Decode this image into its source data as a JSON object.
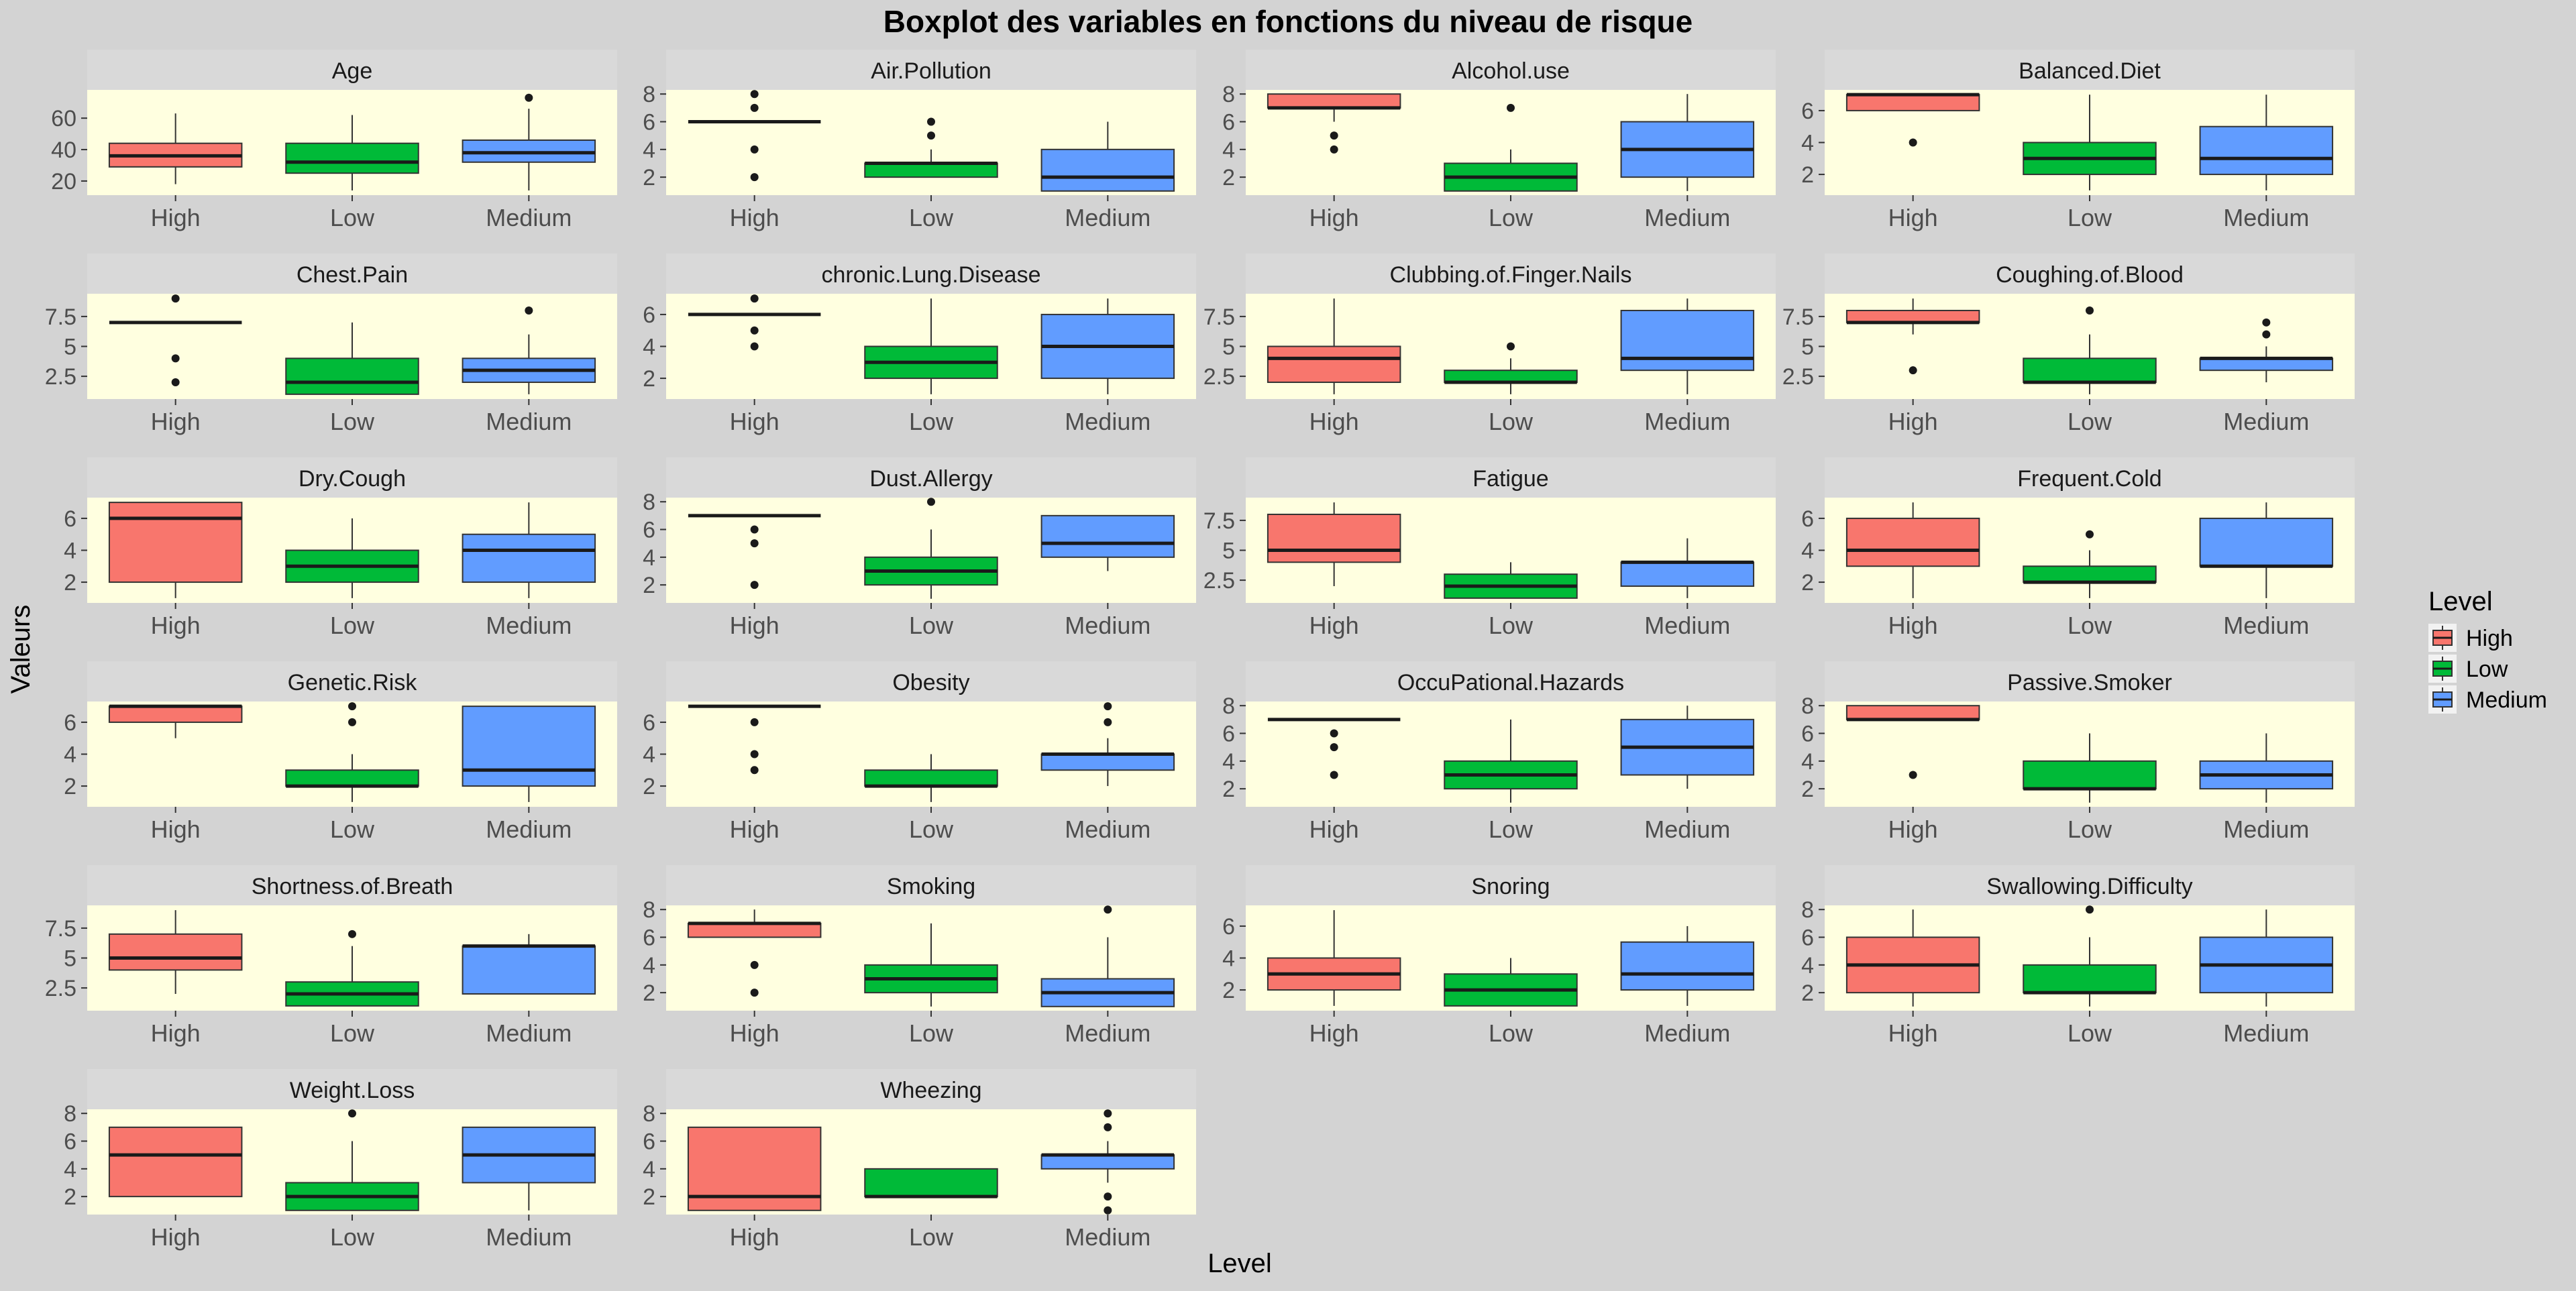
{
  "chart_data": {
    "type": "boxplot",
    "title": "Boxplot des variables en fonctions  du niveau de risque",
    "xlabel": "Level",
    "ylabel": "Valeurs",
    "categories": [
      "High",
      "Low",
      "Medium"
    ],
    "legend": {
      "title": "Level",
      "position": "right",
      "entries": [
        {
          "label": "High",
          "color": "#f8766d"
        },
        {
          "label": "Low",
          "color": "#00ba38"
        },
        {
          "label": "Medium",
          "color": "#619cff"
        }
      ]
    },
    "panel_background": "#ffffe0",
    "strip_background": "#d9d9d9",
    "page_background": "#d3d3d3",
    "panels": [
      {
        "title": "Age",
        "ylim": [
          11,
          78
        ],
        "yticks": [
          20,
          40,
          60
        ],
        "boxes": [
          {
            "level": "High",
            "min": 18,
            "q1": 29,
            "median": 36,
            "q3": 44,
            "max": 63,
            "outliers": []
          },
          {
            "level": "Low",
            "min": 14,
            "q1": 25,
            "median": 32,
            "q3": 44,
            "max": 62,
            "outliers": []
          },
          {
            "level": "Medium",
            "min": 14,
            "q1": 32,
            "median": 38,
            "q3": 46,
            "max": 66,
            "outliers": [
              73
            ]
          }
        ]
      },
      {
        "title": "Air.Pollution",
        "ylim": [
          0.7,
          8.3
        ],
        "yticks": [
          2,
          4,
          6,
          8
        ],
        "boxes": [
          {
            "level": "High",
            "min": 6,
            "q1": 6,
            "median": 6,
            "q3": 6,
            "max": 6,
            "outliers": [
              2,
              4,
              7,
              8
            ]
          },
          {
            "level": "Low",
            "min": 2,
            "q1": 2,
            "median": 3,
            "q3": 3,
            "max": 4,
            "outliers": [
              5,
              6
            ]
          },
          {
            "level": "Medium",
            "min": 1,
            "q1": 1,
            "median": 2,
            "q3": 4,
            "max": 6,
            "outliers": []
          }
        ]
      },
      {
        "title": "Alcohol.use",
        "ylim": [
          0.7,
          8.3
        ],
        "yticks": [
          2,
          4,
          6,
          8
        ],
        "boxes": [
          {
            "level": "High",
            "min": 6,
            "q1": 7,
            "median": 7,
            "q3": 8,
            "max": 8,
            "outliers": [
              4,
              5
            ]
          },
          {
            "level": "Low",
            "min": 1,
            "q1": 1,
            "median": 2,
            "q3": 3,
            "max": 4,
            "outliers": [
              7
            ]
          },
          {
            "level": "Medium",
            "min": 1,
            "q1": 2,
            "median": 4,
            "q3": 6,
            "max": 8,
            "outliers": []
          }
        ]
      },
      {
        "title": "Balanced.Diet",
        "ylim": [
          0.7,
          7.3
        ],
        "yticks": [
          2,
          4,
          6
        ],
        "boxes": [
          {
            "level": "High",
            "min": 6,
            "q1": 6,
            "median": 7,
            "q3": 7,
            "max": 7,
            "outliers": [
              4
            ]
          },
          {
            "level": "Low",
            "min": 1,
            "q1": 2,
            "median": 3,
            "q3": 4,
            "max": 7,
            "outliers": []
          },
          {
            "level": "Medium",
            "min": 1,
            "q1": 2,
            "median": 3,
            "q3": 5,
            "max": 7,
            "outliers": []
          }
        ]
      },
      {
        "title": "Chest.Pain",
        "ylim": [
          0.6,
          9.4
        ],
        "yticks": [
          2.5,
          5.0,
          7.5
        ],
        "boxes": [
          {
            "level": "High",
            "min": 7,
            "q1": 7,
            "median": 7,
            "q3": 7,
            "max": 7,
            "outliers": [
              2,
              4,
              9
            ]
          },
          {
            "level": "Low",
            "min": 1,
            "q1": 1,
            "median": 2,
            "q3": 4,
            "max": 7,
            "outliers": []
          },
          {
            "level": "Medium",
            "min": 1,
            "q1": 2,
            "median": 3,
            "q3": 4,
            "max": 6,
            "outliers": [
              8
            ]
          }
        ]
      },
      {
        "title": "chronic.Lung.Disease",
        "ylim": [
          0.7,
          7.3
        ],
        "yticks": [
          2,
          4,
          6
        ],
        "boxes": [
          {
            "level": "High",
            "min": 6,
            "q1": 6,
            "median": 6,
            "q3": 6,
            "max": 6,
            "outliers": [
              4,
              5,
              7
            ]
          },
          {
            "level": "Low",
            "min": 1,
            "q1": 2,
            "median": 3,
            "q3": 4,
            "max": 7,
            "outliers": []
          },
          {
            "level": "Medium",
            "min": 1,
            "q1": 2,
            "median": 4,
            "q3": 6,
            "max": 7,
            "outliers": []
          }
        ]
      },
      {
        "title": "Clubbing.of.Finger.Nails",
        "ylim": [
          0.6,
          9.4
        ],
        "yticks": [
          2.5,
          5.0,
          7.5
        ],
        "boxes": [
          {
            "level": "High",
            "min": 1,
            "q1": 2,
            "median": 4,
            "q3": 5,
            "max": 9,
            "outliers": []
          },
          {
            "level": "Low",
            "min": 1,
            "q1": 2,
            "median": 2,
            "q3": 3,
            "max": 4,
            "outliers": [
              5
            ]
          },
          {
            "level": "Medium",
            "min": 1,
            "q1": 3,
            "median": 4,
            "q3": 8,
            "max": 9,
            "outliers": []
          }
        ]
      },
      {
        "title": "Coughing.of.Blood",
        "ylim": [
          0.6,
          9.4
        ],
        "yticks": [
          2.5,
          5.0,
          7.5
        ],
        "boxes": [
          {
            "level": "High",
            "min": 6,
            "q1": 7,
            "median": 7,
            "q3": 8,
            "max": 9,
            "outliers": [
              3
            ]
          },
          {
            "level": "Low",
            "min": 1,
            "q1": 2,
            "median": 2,
            "q3": 4,
            "max": 6,
            "outliers": [
              8
            ]
          },
          {
            "level": "Medium",
            "min": 2,
            "q1": 3,
            "median": 4,
            "q3": 4,
            "max": 5,
            "outliers": [
              6,
              7
            ]
          }
        ]
      },
      {
        "title": "Dry.Cough",
        "ylim": [
          0.7,
          7.3
        ],
        "yticks": [
          2,
          4,
          6
        ],
        "boxes": [
          {
            "level": "High",
            "min": 1,
            "q1": 2,
            "median": 6,
            "q3": 7,
            "max": 7,
            "outliers": []
          },
          {
            "level": "Low",
            "min": 1,
            "q1": 2,
            "median": 3,
            "q3": 4,
            "max": 6,
            "outliers": []
          },
          {
            "level": "Medium",
            "min": 1,
            "q1": 2,
            "median": 4,
            "q3": 5,
            "max": 7,
            "outliers": []
          }
        ]
      },
      {
        "title": "Dust.Allergy",
        "ylim": [
          0.7,
          8.3
        ],
        "yticks": [
          2,
          4,
          6,
          8
        ],
        "boxes": [
          {
            "level": "High",
            "min": 7,
            "q1": 7,
            "median": 7,
            "q3": 7,
            "max": 7,
            "outliers": [
              2,
              5,
              6
            ]
          },
          {
            "level": "Low",
            "min": 1,
            "q1": 2,
            "median": 3,
            "q3": 4,
            "max": 6,
            "outliers": [
              8
            ]
          },
          {
            "level": "Medium",
            "min": 3,
            "q1": 4,
            "median": 5,
            "q3": 7,
            "max": 7,
            "outliers": []
          }
        ]
      },
      {
        "title": "Fatigue",
        "ylim": [
          0.6,
          9.4
        ],
        "yticks": [
          2.5,
          5.0,
          7.5
        ],
        "boxes": [
          {
            "level": "High",
            "min": 2,
            "q1": 4,
            "median": 5,
            "q3": 8,
            "max": 9,
            "outliers": []
          },
          {
            "level": "Low",
            "min": 1,
            "q1": 1,
            "median": 2,
            "q3": 3,
            "max": 4,
            "outliers": []
          },
          {
            "level": "Medium",
            "min": 1,
            "q1": 2,
            "median": 4,
            "q3": 4,
            "max": 6,
            "outliers": []
          }
        ]
      },
      {
        "title": "Frequent.Cold",
        "ylim": [
          0.7,
          7.3
        ],
        "yticks": [
          2,
          4,
          6
        ],
        "boxes": [
          {
            "level": "High",
            "min": 1,
            "q1": 3,
            "median": 4,
            "q3": 6,
            "max": 7,
            "outliers": []
          },
          {
            "level": "Low",
            "min": 1,
            "q1": 2,
            "median": 2,
            "q3": 3,
            "max": 4,
            "outliers": [
              5
            ]
          },
          {
            "level": "Medium",
            "min": 1,
            "q1": 3,
            "median": 3,
            "q3": 6,
            "max": 7,
            "outliers": []
          }
        ]
      },
      {
        "title": "Genetic.Risk",
        "ylim": [
          0.7,
          7.3
        ],
        "yticks": [
          2,
          4,
          6
        ],
        "boxes": [
          {
            "level": "High",
            "min": 5,
            "q1": 6,
            "median": 7,
            "q3": 7,
            "max": 7,
            "outliers": []
          },
          {
            "level": "Low",
            "min": 1,
            "q1": 2,
            "median": 2,
            "q3": 3,
            "max": 4,
            "outliers": [
              6,
              7
            ]
          },
          {
            "level": "Medium",
            "min": 1,
            "q1": 2,
            "median": 3,
            "q3": 7,
            "max": 7,
            "outliers": []
          }
        ]
      },
      {
        "title": "Obesity",
        "ylim": [
          0.7,
          7.3
        ],
        "yticks": [
          2,
          4,
          6
        ],
        "boxes": [
          {
            "level": "High",
            "min": 7,
            "q1": 7,
            "median": 7,
            "q3": 7,
            "max": 7,
            "outliers": [
              3,
              4,
              6
            ]
          },
          {
            "level": "Low",
            "min": 1,
            "q1": 2,
            "median": 2,
            "q3": 3,
            "max": 4,
            "outliers": []
          },
          {
            "level": "Medium",
            "min": 2,
            "q1": 3,
            "median": 4,
            "q3": 4,
            "max": 5,
            "outliers": [
              6,
              7
            ]
          }
        ]
      },
      {
        "title": "OccuPational.Hazards",
        "ylim": [
          0.7,
          8.3
        ],
        "yticks": [
          2,
          4,
          6,
          8
        ],
        "boxes": [
          {
            "level": "High",
            "min": 7,
            "q1": 7,
            "median": 7,
            "q3": 7,
            "max": 7,
            "outliers": [
              3,
              5,
              6
            ]
          },
          {
            "level": "Low",
            "min": 1,
            "q1": 2,
            "median": 3,
            "q3": 4,
            "max": 7,
            "outliers": []
          },
          {
            "level": "Medium",
            "min": 2,
            "q1": 3,
            "median": 5,
            "q3": 7,
            "max": 8,
            "outliers": []
          }
        ]
      },
      {
        "title": "Passive.Smoker",
        "ylim": [
          0.7,
          8.3
        ],
        "yticks": [
          2,
          4,
          6,
          8
        ],
        "boxes": [
          {
            "level": "High",
            "min": 7,
            "q1": 7,
            "median": 7,
            "q3": 8,
            "max": 8,
            "outliers": [
              3
            ]
          },
          {
            "level": "Low",
            "min": 1,
            "q1": 2,
            "median": 2,
            "q3": 4,
            "max": 6,
            "outliers": []
          },
          {
            "level": "Medium",
            "min": 1,
            "q1": 2,
            "median": 3,
            "q3": 4,
            "max": 6,
            "outliers": []
          }
        ]
      },
      {
        "title": "Shortness.of.Breath",
        "ylim": [
          0.6,
          9.4
        ],
        "yticks": [
          2.5,
          5.0,
          7.5
        ],
        "boxes": [
          {
            "level": "High",
            "min": 2,
            "q1": 4,
            "median": 5,
            "q3": 7,
            "max": 9,
            "outliers": []
          },
          {
            "level": "Low",
            "min": 1,
            "q1": 1,
            "median": 2,
            "q3": 3,
            "max": 6,
            "outliers": [
              7
            ]
          },
          {
            "level": "Medium",
            "min": 2,
            "q1": 2,
            "median": 6,
            "q3": 6,
            "max": 7,
            "outliers": []
          }
        ]
      },
      {
        "title": "Smoking",
        "ylim": [
          0.7,
          8.3
        ],
        "yticks": [
          2,
          4,
          6,
          8
        ],
        "boxes": [
          {
            "level": "High",
            "min": 6,
            "q1": 6,
            "median": 7,
            "q3": 7,
            "max": 8,
            "outliers": [
              2,
              4
            ]
          },
          {
            "level": "Low",
            "min": 1,
            "q1": 2,
            "median": 3,
            "q3": 4,
            "max": 7,
            "outliers": []
          },
          {
            "level": "Medium",
            "min": 1,
            "q1": 1,
            "median": 2,
            "q3": 3,
            "max": 6,
            "outliers": [
              8
            ]
          }
        ]
      },
      {
        "title": "Snoring",
        "ylim": [
          0.7,
          7.3
        ],
        "yticks": [
          2,
          4,
          6
        ],
        "boxes": [
          {
            "level": "High",
            "min": 1,
            "q1": 2,
            "median": 3,
            "q3": 4,
            "max": 7,
            "outliers": []
          },
          {
            "level": "Low",
            "min": 1,
            "q1": 1,
            "median": 2,
            "q3": 3,
            "max": 4,
            "outliers": []
          },
          {
            "level": "Medium",
            "min": 1,
            "q1": 2,
            "median": 3,
            "q3": 5,
            "max": 6,
            "outliers": []
          }
        ]
      },
      {
        "title": "Swallowing.Difficulty",
        "ylim": [
          0.7,
          8.3
        ],
        "yticks": [
          2,
          4,
          6,
          8
        ],
        "boxes": [
          {
            "level": "High",
            "min": 1,
            "q1": 2,
            "median": 4,
            "q3": 6,
            "max": 8,
            "outliers": []
          },
          {
            "level": "Low",
            "min": 1,
            "q1": 2,
            "median": 2,
            "q3": 4,
            "max": 6,
            "outliers": [
              8
            ]
          },
          {
            "level": "Medium",
            "min": 1,
            "q1": 2,
            "median": 4,
            "q3": 6,
            "max": 8,
            "outliers": []
          }
        ]
      },
      {
        "title": "Weight.Loss",
        "ylim": [
          0.7,
          8.3
        ],
        "yticks": [
          2,
          4,
          6,
          8
        ],
        "boxes": [
          {
            "level": "High",
            "min": 2,
            "q1": 2,
            "median": 5,
            "q3": 7,
            "max": 7,
            "outliers": []
          },
          {
            "level": "Low",
            "min": 1,
            "q1": 1,
            "median": 2,
            "q3": 3,
            "max": 6,
            "outliers": [
              8
            ]
          },
          {
            "level": "Medium",
            "min": 1,
            "q1": 3,
            "median": 5,
            "q3": 7,
            "max": 7,
            "outliers": []
          }
        ]
      },
      {
        "title": "Wheezing",
        "ylim": [
          0.7,
          8.3
        ],
        "yticks": [
          2,
          4,
          6,
          8
        ],
        "boxes": [
          {
            "level": "High",
            "min": 1,
            "q1": 1,
            "median": 2,
            "q3": 7,
            "max": 7,
            "outliers": []
          },
          {
            "level": "Low",
            "min": 2,
            "q1": 2,
            "median": 2,
            "q3": 4,
            "max": 4,
            "outliers": []
          },
          {
            "level": "Medium",
            "min": 3,
            "q1": 4,
            "median": 5,
            "q3": 5,
            "max": 6,
            "outliers": [
              1,
              2,
              7,
              8
            ]
          }
        ]
      }
    ]
  }
}
